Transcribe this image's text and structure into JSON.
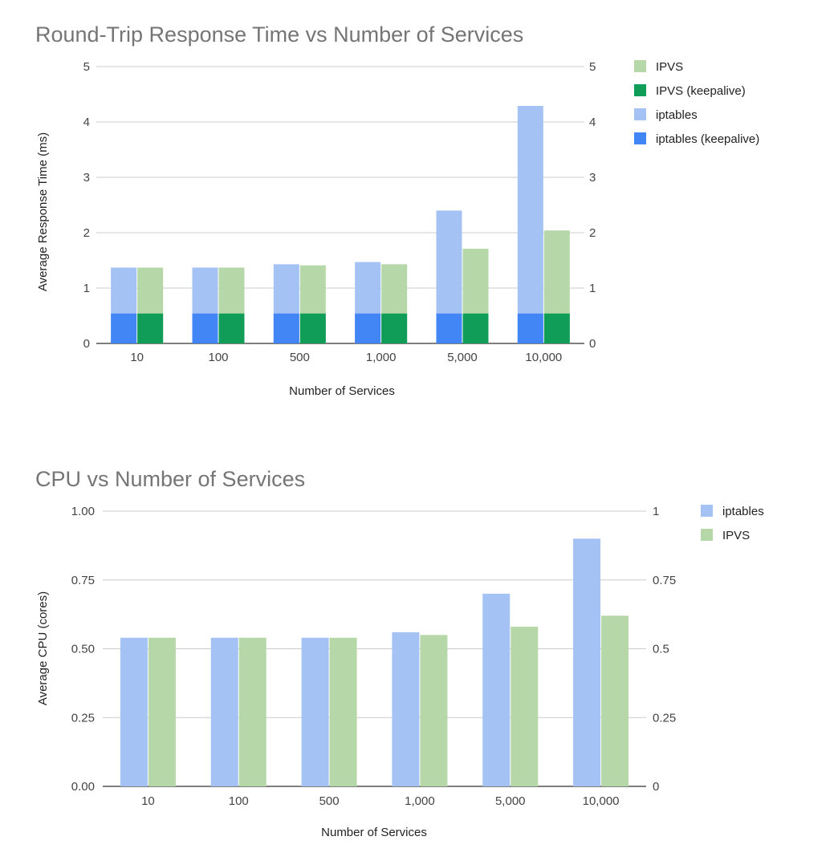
{
  "chart_data": [
    {
      "type": "bar",
      "stacked_overlay": true,
      "title": "Round-Trip Response Time vs Number of Services",
      "xlabel": "Number of Services",
      "ylabel": "Average Response Time (ms)",
      "categories": [
        "10",
        "100",
        "500",
        "1,000",
        "5,000",
        "10,000"
      ],
      "ylim": [
        0,
        5
      ],
      "y_ticks_left": [
        "0",
        "1",
        "2",
        "3",
        "4",
        "5"
      ],
      "y_ticks_right": [
        "0",
        "1",
        "2",
        "3",
        "4",
        "5"
      ],
      "grid": true,
      "legend_position": "right",
      "series": [
        {
          "name": "IPVS",
          "color": "#b6d7a8",
          "values": [
            1.37,
            1.37,
            1.41,
            1.43,
            1.71,
            2.04
          ]
        },
        {
          "name": "IPVS (keepalive)",
          "color": "#0f9d58",
          "values": [
            0.54,
            0.54,
            0.54,
            0.54,
            0.54,
            0.54
          ]
        },
        {
          "name": "iptables",
          "color": "#a4c2f4",
          "values": [
            1.37,
            1.37,
            1.43,
            1.47,
            2.4,
            4.29
          ]
        },
        {
          "name": "iptables (keepalive)",
          "color": "#4285f4",
          "values": [
            0.54,
            0.54,
            0.54,
            0.54,
            0.54,
            0.54
          ]
        }
      ]
    },
    {
      "type": "bar",
      "title": "CPU vs Number of Services",
      "xlabel": "Number of Services",
      "ylabel": "Average CPU (cores)",
      "categories": [
        "10",
        "100",
        "500",
        "1,000",
        "5,000",
        "10,000"
      ],
      "ylim": [
        0,
        1
      ],
      "y_ticks_left": [
        "0.00",
        "0.25",
        "0.50",
        "0.75",
        "1.00"
      ],
      "y_ticks_right": [
        "0",
        "0.25",
        "0.5",
        "0.75",
        "1"
      ],
      "grid": true,
      "legend_position": "right",
      "series": [
        {
          "name": "iptables",
          "color": "#a4c2f4",
          "values": [
            0.54,
            0.54,
            0.54,
            0.56,
            0.7,
            0.9
          ]
        },
        {
          "name": "IPVS",
          "color": "#b6d7a8",
          "values": [
            0.54,
            0.54,
            0.54,
            0.55,
            0.58,
            0.62
          ]
        }
      ]
    }
  ]
}
